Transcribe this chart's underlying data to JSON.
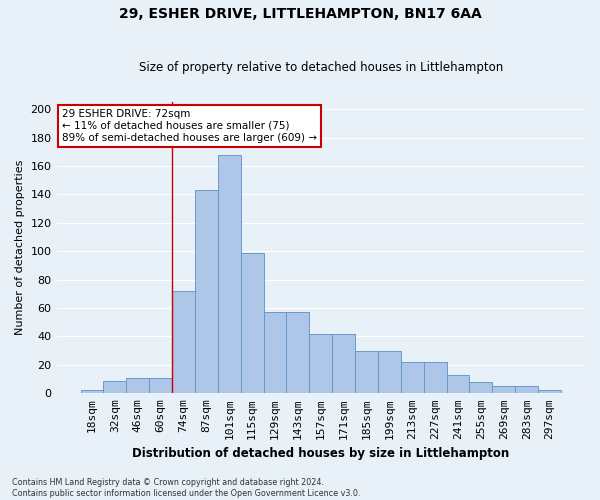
{
  "title1": "29, ESHER DRIVE, LITTLEHAMPTON, BN17 6AA",
  "title2": "Size of property relative to detached houses in Littlehampton",
  "xlabel": "Distribution of detached houses by size in Littlehampton",
  "ylabel": "Number of detached properties",
  "categories": [
    "18sqm",
    "32sqm",
    "46sqm",
    "60sqm",
    "74sqm",
    "87sqm",
    "101sqm",
    "115sqm",
    "129sqm",
    "143sqm",
    "157sqm",
    "171sqm",
    "185sqm",
    "199sqm",
    "213sqm",
    "227sqm",
    "241sqm",
    "255sqm",
    "269sqm",
    "283sqm",
    "297sqm"
  ],
  "values": [
    2,
    9,
    11,
    11,
    72,
    143,
    168,
    99,
    57,
    57,
    42,
    42,
    30,
    30,
    22,
    22,
    13,
    8,
    5,
    5,
    2
  ],
  "bar_color": "#aec6e8",
  "bar_edge_color": "#6699cc",
  "background_color": "#e8f0f8",
  "grid_color": "#ffffff",
  "vline_x": 3.5,
  "vline_color": "#cc0000",
  "annotation_text": "29 ESHER DRIVE: 72sqm\n← 11% of detached houses are smaller (75)\n89% of semi-detached houses are larger (609) →",
  "annotation_box_color": "#ffffff",
  "annotation_box_edge": "#cc0000",
  "footer": "Contains HM Land Registry data © Crown copyright and database right 2024.\nContains public sector information licensed under the Open Government Licence v3.0.",
  "ylim": [
    0,
    205
  ],
  "yticks": [
    0,
    20,
    40,
    60,
    80,
    100,
    120,
    140,
    160,
    180,
    200
  ]
}
